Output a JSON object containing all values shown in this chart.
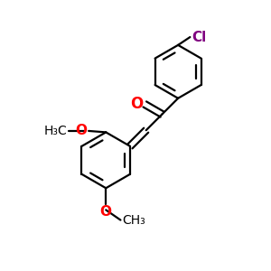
{
  "bg_color": "#ffffff",
  "bond_color": "#000000",
  "o_color": "#ff0000",
  "cl_color": "#800080",
  "lw": 1.6,
  "figsize": [
    3.0,
    3.0
  ],
  "dpi": 100,
  "xlim": [
    0,
    10
  ],
  "ylim": [
    0,
    10
  ]
}
